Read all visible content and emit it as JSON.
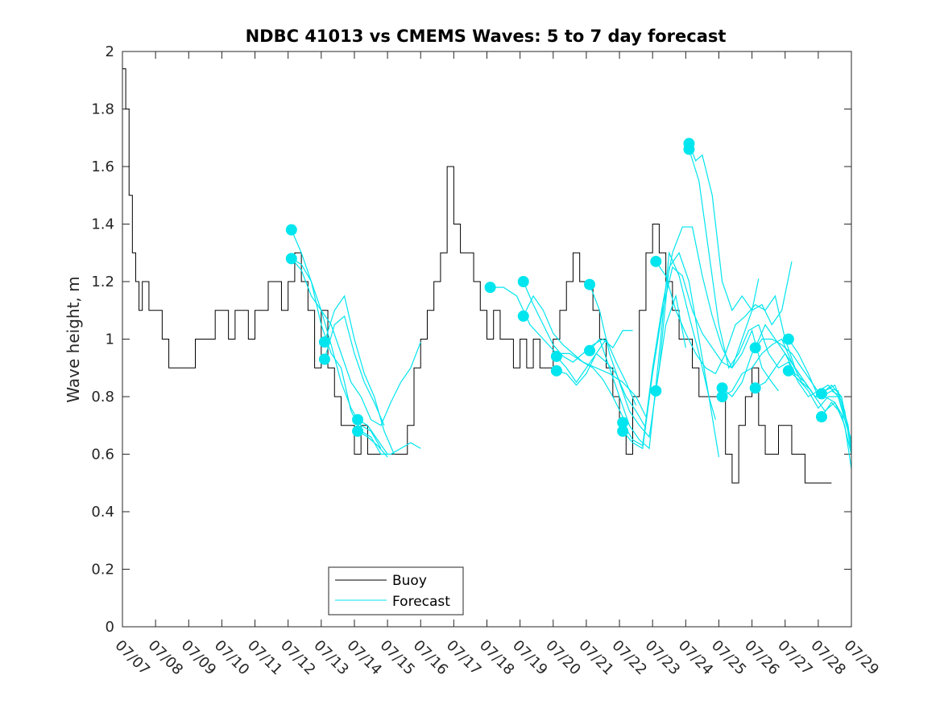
{
  "chart_data": {
    "type": "line",
    "title": "NDBC 41013 vs CMEMS Waves: 5 to 7 day forecast",
    "xlabel": "",
    "ylabel": "Wave height, m",
    "xlim": [
      0,
      22
    ],
    "ylim": [
      0,
      2
    ],
    "x_ticks": [
      0,
      1,
      2,
      3,
      4,
      5,
      6,
      7,
      8,
      9,
      10,
      11,
      12,
      13,
      14,
      15,
      16,
      17,
      18,
      19,
      20,
      21,
      22
    ],
    "x_tick_labels": [
      "07/07",
      "07/08",
      "07/09",
      "07/10",
      "07/11",
      "07/12",
      "07/13",
      "07/14",
      "07/15",
      "07/16",
      "07/17",
      "07/18",
      "07/19",
      "07/20",
      "07/21",
      "07/22",
      "07/23",
      "07/24",
      "07/25",
      "07/26",
      "07/27",
      "07/28",
      "07/29"
    ],
    "y_ticks": [
      0,
      0.2,
      0.4,
      0.6,
      0.8,
      1,
      1.2,
      1.4,
      1.6,
      1.8,
      2
    ],
    "y_tick_labels": [
      "0",
      "0.2",
      "0.4",
      "0.6",
      "0.8",
      "1",
      "1.2",
      "1.4",
      "1.6",
      "1.8",
      "2"
    ],
    "grid": false,
    "legend": {
      "position": "bottom-center",
      "entries": [
        {
          "label": "Buoy",
          "color": "#000000"
        },
        {
          "label": "Forecast",
          "color": "#00e5ee"
        }
      ]
    },
    "colors": {
      "buoy": "#000000",
      "forecast": "#00e5ee"
    },
    "buoy": {
      "name": "Buoy",
      "x": [
        0,
        0.1,
        0.2,
        0.3,
        0.4,
        0.5,
        0.6,
        0.8,
        1.0,
        1.2,
        1.4,
        1.5,
        1.8,
        2.0,
        2.2,
        2.4,
        2.6,
        2.8,
        3.0,
        3.2,
        3.4,
        3.6,
        3.8,
        4.0,
        4.2,
        4.4,
        4.6,
        4.8,
        5.0,
        5.2,
        5.4,
        5.6,
        5.8,
        6.0,
        6.2,
        6.4,
        6.6,
        6.8,
        7.0,
        7.2,
        7.4,
        7.6,
        7.8,
        8.0,
        8.2,
        8.4,
        8.6,
        8.8,
        9.0,
        9.2,
        9.4,
        9.6,
        9.8,
        10.0,
        10.2,
        10.4,
        10.6,
        10.8,
        11.0,
        11.2,
        11.4,
        11.6,
        11.8,
        12.0,
        12.2,
        12.4,
        12.6,
        12.8,
        13.0,
        13.2,
        13.4,
        13.6,
        13.8,
        14.0,
        14.2,
        14.4,
        14.6,
        14.8,
        15.0,
        15.2,
        15.4,
        15.6,
        15.8,
        16.0,
        16.2,
        16.4,
        16.6,
        16.8,
        17.0,
        17.2,
        17.4,
        17.6,
        17.8,
        18.0,
        18.2,
        18.4,
        18.6,
        18.8,
        19.0,
        19.2,
        19.4,
        19.6,
        19.8,
        20.0,
        20.2,
        20.4,
        20.6,
        20.8,
        21.0,
        21.2,
        21.4
      ],
      "values": [
        1.94,
        1.8,
        1.5,
        1.3,
        1.2,
        1.1,
        1.2,
        1.1,
        1.1,
        1.0,
        0.9,
        0.9,
        0.9,
        0.9,
        1.0,
        1.0,
        1.0,
        1.1,
        1.1,
        1.0,
        1.1,
        1.1,
        1.0,
        1.1,
        1.1,
        1.2,
        1.2,
        1.1,
        1.2,
        1.3,
        1.2,
        1.1,
        0.9,
        1.1,
        0.9,
        0.8,
        0.7,
        0.7,
        0.6,
        0.7,
        0.6,
        0.6,
        0.6,
        0.6,
        0.6,
        0.6,
        0.7,
        0.9,
        1.0,
        1.1,
        1.2,
        1.3,
        1.6,
        1.4,
        1.3,
        1.3,
        1.2,
        1.1,
        1.0,
        1.1,
        1.0,
        1.0,
        0.9,
        1.0,
        0.9,
        1.0,
        0.9,
        0.9,
        1.0,
        1.1,
        1.2,
        1.3,
        1.2,
        1.2,
        1.1,
        1.0,
        0.9,
        0.8,
        0.7,
        0.6,
        0.8,
        1.1,
        1.3,
        1.4,
        1.3,
        1.2,
        1.1,
        1.0,
        1.0,
        0.9,
        0.8,
        0.8,
        0.8,
        0.8,
        0.6,
        0.5,
        0.7,
        0.8,
        0.9,
        0.7,
        0.6,
        0.6,
        0.7,
        0.7,
        0.6,
        0.6,
        0.5,
        0.5,
        0.5,
        0.5,
        0.5
      ]
    },
    "forecast_series": [
      {
        "name": "Forecast",
        "x": [
          5.1,
          5.4,
          5.7,
          6.0,
          6.3,
          6.6,
          6.9,
          7.2,
          7.5,
          7.8,
          8.1,
          8.4,
          8.7,
          9.0
        ],
        "values": [
          1.38,
          1.3,
          1.2,
          1.05,
          0.95,
          0.9,
          0.75,
          0.68,
          0.66,
          0.6,
          0.6,
          0.62,
          0.64,
          0.62
        ]
      },
      {
        "name": "Forecast",
        "x": [
          5.1,
          5.4,
          5.7,
          6.0,
          6.3,
          6.6,
          6.9,
          7.2,
          7.5,
          7.8,
          8.1,
          8.4,
          8.7,
          9.0
        ],
        "values": [
          1.28,
          1.24,
          1.15,
          1.1,
          1.05,
          0.95,
          0.85,
          0.8,
          0.72,
          0.7,
          0.78,
          0.85,
          0.9,
          0.99
        ]
      },
      {
        "name": "Forecast",
        "x": [
          5.1,
          5.4,
          5.7,
          6.0,
          6.3,
          6.6,
          6.9,
          7.2,
          7.5,
          7.8
        ],
        "values": [
          1.28,
          1.26,
          1.2,
          1.1,
          0.98,
          0.85,
          0.76,
          0.7,
          0.68,
          0.62
        ]
      },
      {
        "name": "Forecast",
        "x": [
          6.1,
          6.4,
          6.7,
          7.0,
          7.3,
          7.6,
          7.9,
          8.2
        ],
        "values": [
          0.99,
          1.1,
          1.15,
          1.0,
          0.88,
          0.8,
          0.68,
          0.6
        ]
      },
      {
        "name": "Forecast",
        "x": [
          6.1,
          6.4,
          6.7,
          7.0,
          7.3,
          7.6,
          7.9
        ],
        "values": [
          0.93,
          1.05,
          1.08,
          0.95,
          0.85,
          0.78,
          0.7
        ]
      },
      {
        "name": "Forecast",
        "x": [
          7.1,
          7.4,
          7.7,
          8.0
        ],
        "values": [
          0.72,
          0.7,
          0.65,
          0.6
        ]
      },
      {
        "name": "Forecast",
        "x": [
          7.1,
          7.4,
          7.7,
          8.0
        ],
        "values": [
          0.68,
          0.66,
          0.63,
          0.59
        ]
      },
      {
        "name": "Forecast",
        "x": [
          11.1,
          11.5,
          11.9,
          12.3,
          12.7,
          13.1,
          13.5,
          13.9,
          14.3,
          14.7,
          15.1,
          15.5,
          15.8
        ],
        "values": [
          1.18,
          1.18,
          1.15,
          1.05,
          1.0,
          0.95,
          0.95,
          0.92,
          0.9,
          0.88,
          0.85,
          0.8,
          0.73
        ]
      },
      {
        "name": "Forecast",
        "x": [
          12.1,
          12.4,
          12.7,
          13.0,
          13.3,
          13.6,
          13.9,
          14.2,
          14.5,
          14.8,
          15.1,
          15.4
        ],
        "values": [
          1.2,
          1.12,
          1.05,
          0.98,
          0.94,
          0.92,
          0.95,
          0.98,
          1.0,
          0.97,
          1.03,
          1.03
        ]
      },
      {
        "name": "Forecast",
        "x": [
          12.1,
          12.4,
          12.7,
          13.0,
          13.3,
          13.6,
          13.9,
          14.2,
          14.5,
          14.8,
          15.1
        ],
        "values": [
          1.08,
          1.15,
          1.1,
          1.02,
          0.98,
          0.95,
          0.92,
          0.9,
          0.86,
          0.8,
          0.73
        ]
      },
      {
        "name": "Forecast",
        "x": [
          13.1,
          13.4,
          13.7,
          14.0,
          14.3,
          14.6,
          14.9,
          15.2,
          15.5,
          15.8
        ],
        "values": [
          0.94,
          0.9,
          0.85,
          0.9,
          0.95,
          0.92,
          0.88,
          0.8,
          0.75,
          0.69
        ]
      },
      {
        "name": "Forecast",
        "x": [
          13.1,
          13.4,
          13.7,
          14.0,
          14.3,
          14.6,
          14.9,
          15.2,
          15.5
        ],
        "values": [
          0.89,
          0.88,
          0.84,
          0.88,
          0.95,
          1.0,
          0.92,
          0.85,
          0.77
        ]
      },
      {
        "name": "Forecast",
        "x": [
          14.1,
          14.4,
          14.7,
          15.0,
          15.3,
          15.6,
          15.9,
          16.2,
          16.5,
          16.8,
          17.1,
          17.4,
          17.7,
          18.0
        ],
        "values": [
          1.19,
          1.1,
          0.95,
          0.85,
          0.75,
          0.7,
          0.66,
          0.9,
          1.25,
          1.3,
          1.2,
          1.0,
          0.8,
          0.59
        ]
      },
      {
        "name": "Forecast",
        "x": [
          14.1,
          14.4,
          14.7,
          15.0,
          15.3,
          15.6,
          15.9,
          16.2,
          16.5,
          16.8,
          17.1,
          17.4,
          17.7,
          17.9
        ],
        "values": [
          0.96,
          1.0,
          0.9,
          0.8,
          0.7,
          0.65,
          0.62,
          0.95,
          1.3,
          1.22,
          1.08,
          0.95,
          0.8,
          0.72
        ]
      },
      {
        "name": "Forecast",
        "x": [
          15.1,
          15.4,
          15.7,
          16.0,
          16.3,
          16.6,
          16.9,
          17.2,
          17.5,
          17.8,
          18.1,
          18.4,
          18.7,
          19.0,
          19.3,
          19.6,
          19.8
        ],
        "values": [
          0.71,
          0.65,
          0.63,
          0.9,
          1.12,
          1.3,
          1.39,
          1.39,
          1.22,
          1.08,
          0.97,
          0.9,
          0.95,
          1.03,
          0.9,
          0.85,
          0.82
        ]
      },
      {
        "name": "Forecast",
        "x": [
          15.1,
          15.4,
          15.7,
          16.0,
          16.3,
          16.6,
          16.9,
          17.2,
          17.5,
          17.8,
          18.1,
          18.4,
          18.7,
          19.0,
          19.2
        ],
        "values": [
          0.68,
          0.64,
          0.62,
          0.88,
          1.1,
          1.25,
          1.22,
          1.1,
          1.02,
          0.97,
          0.92,
          0.9,
          1.0,
          1.1,
          1.21
        ]
      },
      {
        "name": "Forecast",
        "x": [
          16.1,
          16.4,
          16.7,
          17.0
        ],
        "values": [
          0.82,
          1.05,
          1.15,
          0.97
        ]
      },
      {
        "name": "Forecast",
        "x": [
          16.1,
          16.4,
          16.7,
          17.0,
          17.3,
          17.6,
          17.9,
          18.2,
          18.5,
          18.8,
          19.1,
          19.4,
          19.7,
          20.0,
          20.3,
          20.6,
          20.9,
          21.2,
          21.5,
          21.8,
          22.0
        ],
        "values": [
          1.27,
          1.22,
          1.1,
          1.02,
          0.95,
          0.9,
          0.88,
          0.95,
          1.05,
          1.08,
          1.12,
          1.1,
          1.15,
          1.0,
          0.9,
          0.85,
          0.8,
          0.8,
          0.78,
          0.7,
          0.55
        ]
      },
      {
        "name": "Forecast",
        "x": [
          17.1,
          17.3,
          17.5,
          17.8,
          18.1,
          18.4,
          18.7,
          19.0,
          19.3,
          19.6,
          19.9,
          20.2
        ],
        "values": [
          1.68,
          1.62,
          1.64,
          1.5,
          1.2,
          1.1,
          1.15,
          1.1,
          1.12,
          1.05,
          1.1,
          1.27
        ]
      },
      {
        "name": "Forecast",
        "x": [
          17.1,
          17.4,
          17.7,
          18.0,
          18.3,
          18.6,
          18.9,
          19.2,
          19.5,
          19.8,
          20.1,
          20.4,
          20.7,
          21.0,
          21.3,
          21.6,
          21.9,
          22.0
        ],
        "values": [
          1.66,
          1.55,
          1.3,
          1.05,
          0.9,
          0.95,
          1.03,
          1.05,
          0.95,
          0.9,
          0.92,
          0.85,
          0.8,
          0.82,
          0.84,
          0.8,
          0.7,
          0.62
        ]
      },
      {
        "name": "Forecast",
        "x": [
          18.1,
          18.4,
          18.7,
          19.0,
          19.3,
          19.6,
          19.9,
          20.2,
          20.5,
          20.8,
          21.1,
          21.4,
          21.7,
          22.0
        ],
        "values": [
          0.83,
          0.8,
          0.85,
          0.95,
          1.0,
          1.0,
          0.98,
          0.95,
          0.9,
          0.85,
          0.8,
          0.82,
          0.8,
          0.63
        ]
      },
      {
        "name": "Forecast",
        "x": [
          18.1,
          18.4,
          18.7,
          19.0,
          19.3,
          19.6,
          19.9,
          20.2,
          20.5,
          20.8
        ],
        "values": [
          0.8,
          0.82,
          0.88,
          0.9,
          0.95,
          0.98,
          1.0,
          0.92,
          0.85,
          0.82
        ]
      },
      {
        "name": "Forecast",
        "x": [
          19.1,
          19.4,
          19.7,
          20.0,
          20.3,
          20.6,
          20.9,
          21.2,
          21.5,
          21.8,
          22.0
        ],
        "values": [
          0.97,
          1.05,
          1.0,
          0.95,
          0.9,
          0.85,
          0.8,
          0.82,
          0.84,
          0.75,
          0.6
        ]
      },
      {
        "name": "Forecast",
        "x": [
          19.1,
          19.4,
          19.7,
          20.0,
          20.3,
          20.6,
          20.9,
          21.2,
          21.5,
          21.8,
          22.0
        ],
        "values": [
          0.83,
          0.85,
          0.9,
          0.95,
          0.88,
          0.85,
          0.8,
          0.75,
          0.78,
          0.72,
          0.65
        ]
      },
      {
        "name": "Forecast",
        "x": [
          20.1,
          20.4,
          20.7,
          21.0,
          21.3,
          21.6,
          21.9
        ],
        "values": [
          1.0,
          0.95,
          0.88,
          0.8,
          0.83,
          0.82,
          0.7
        ]
      },
      {
        "name": "Forecast",
        "x": [
          20.1,
          20.4,
          20.7,
          21.0,
          21.3,
          21.6,
          21.9
        ],
        "values": [
          0.89,
          0.86,
          0.82,
          0.76,
          0.8,
          0.8,
          0.68
        ]
      },
      {
        "name": "Forecast",
        "x": [
          21.1,
          21.4,
          21.7,
          22.0
        ],
        "values": [
          0.81,
          0.84,
          0.8,
          0.63
        ]
      },
      {
        "name": "Forecast",
        "x": [
          21.1,
          21.4,
          21.7,
          22.0
        ],
        "values": [
          0.73,
          0.78,
          0.74,
          0.6
        ]
      }
    ],
    "forecast_markers": {
      "x": [
        5.1,
        5.1,
        6.1,
        6.1,
        7.1,
        7.1,
        11.1,
        12.1,
        12.1,
        13.1,
        13.1,
        14.1,
        14.1,
        15.1,
        15.1,
        16.1,
        16.1,
        17.1,
        17.1,
        18.1,
        18.1,
        19.1,
        19.1,
        20.1,
        20.1,
        21.1,
        21.1
      ],
      "values": [
        1.38,
        1.28,
        0.99,
        0.93,
        0.72,
        0.68,
        1.18,
        1.2,
        1.08,
        0.94,
        0.89,
        1.19,
        0.96,
        0.71,
        0.68,
        1.27,
        0.82,
        1.68,
        1.66,
        0.83,
        0.8,
        0.97,
        0.83,
        1.0,
        0.89,
        0.81,
        0.73
      ]
    }
  }
}
